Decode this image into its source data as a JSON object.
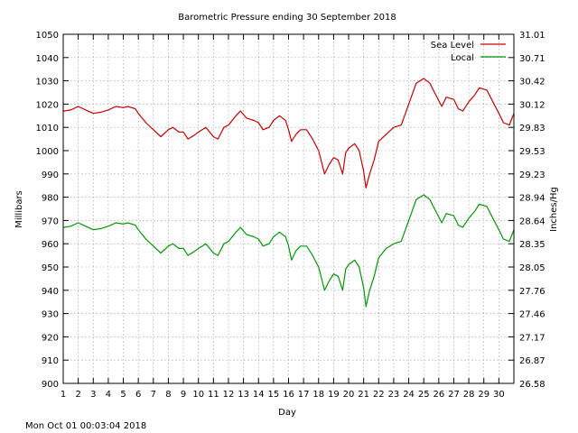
{
  "chart_data": {
    "type": "line",
    "title": "Barometric Pressure ending 30 September 2018",
    "xlabel": "Day",
    "ylabel": "Millibars",
    "y2label": "Inches/Hg",
    "timestamp": "Mon Oct 01 00:03:04 2018",
    "xlim": [
      1,
      31
    ],
    "ylim": [
      900,
      1050
    ],
    "x_ticks": [
      "1",
      "2",
      "3",
      "4",
      "5",
      "6",
      "7",
      "8",
      "9",
      "10",
      "11",
      "12",
      "13",
      "14",
      "15",
      "16",
      "17",
      "18",
      "19",
      "20",
      "21",
      "22",
      "23",
      "24",
      "25",
      "26",
      "27",
      "28",
      "29",
      "30"
    ],
    "y_ticks": [
      "900",
      "910",
      "920",
      "930",
      "940",
      "950",
      "960",
      "970",
      "980",
      "990",
      "1000",
      "1010",
      "1020",
      "1030",
      "1040",
      "1050"
    ],
    "y2_ticks": [
      "26.58",
      "26.87",
      "27.17",
      "27.46",
      "27.76",
      "28.05",
      "28.35",
      "28.64",
      "28.94",
      "29.23",
      "29.53",
      "29.83",
      "30.12",
      "30.42",
      "30.71",
      "31.01"
    ],
    "grid": true,
    "legend_position": "top-right",
    "series": [
      {
        "name": "Sea Level",
        "color": "#cc0000",
        "points": [
          [
            1.0,
            1017
          ],
          [
            1.5,
            1017.5
          ],
          [
            2.0,
            1019
          ],
          [
            2.5,
            1017.5
          ],
          [
            3.0,
            1016
          ],
          [
            3.5,
            1016.5
          ],
          [
            4.0,
            1017.5
          ],
          [
            4.5,
            1019
          ],
          [
            5.0,
            1018.5
          ],
          [
            5.3,
            1019
          ],
          [
            5.8,
            1018
          ],
          [
            6.0,
            1016
          ],
          [
            6.5,
            1012
          ],
          [
            7.0,
            1009
          ],
          [
            7.5,
            1006
          ],
          [
            8.0,
            1009
          ],
          [
            8.3,
            1010
          ],
          [
            8.7,
            1008
          ],
          [
            9.0,
            1008
          ],
          [
            9.3,
            1005
          ],
          [
            9.7,
            1006.5
          ],
          [
            10.0,
            1008
          ],
          [
            10.5,
            1010
          ],
          [
            11.0,
            1006
          ],
          [
            11.3,
            1005
          ],
          [
            11.7,
            1010
          ],
          [
            12.0,
            1011
          ],
          [
            12.5,
            1015
          ],
          [
            12.8,
            1017
          ],
          [
            13.2,
            1014
          ],
          [
            13.7,
            1013
          ],
          [
            14.0,
            1012
          ],
          [
            14.3,
            1009
          ],
          [
            14.7,
            1010
          ],
          [
            15.0,
            1013
          ],
          [
            15.4,
            1015
          ],
          [
            15.8,
            1013
          ],
          [
            16.0,
            1009
          ],
          [
            16.2,
            1004
          ],
          [
            16.5,
            1007
          ],
          [
            16.8,
            1009
          ],
          [
            17.2,
            1009
          ],
          [
            17.6,
            1005
          ],
          [
            18.0,
            1000
          ],
          [
            18.4,
            990
          ],
          [
            18.7,
            994
          ],
          [
            19.0,
            997
          ],
          [
            19.3,
            996
          ],
          [
            19.6,
            990
          ],
          [
            19.8,
            999
          ],
          [
            20.0,
            1001
          ],
          [
            20.4,
            1003
          ],
          [
            20.7,
            1000
          ],
          [
            21.0,
            991
          ],
          [
            21.15,
            984
          ],
          [
            21.4,
            990
          ],
          [
            21.7,
            996
          ],
          [
            22.0,
            1004
          ],
          [
            22.5,
            1007
          ],
          [
            23.0,
            1010
          ],
          [
            23.5,
            1011
          ],
          [
            24.0,
            1020
          ],
          [
            24.5,
            1029
          ],
          [
            25.0,
            1031
          ],
          [
            25.4,
            1029
          ],
          [
            25.8,
            1024
          ],
          [
            26.2,
            1019
          ],
          [
            26.5,
            1023
          ],
          [
            27.0,
            1022
          ],
          [
            27.3,
            1018
          ],
          [
            27.6,
            1017
          ],
          [
            28.0,
            1021
          ],
          [
            28.4,
            1024
          ],
          [
            28.7,
            1027
          ],
          [
            29.2,
            1026
          ],
          [
            29.6,
            1021
          ],
          [
            30.0,
            1016
          ],
          [
            30.3,
            1012
          ],
          [
            30.7,
            1011
          ],
          [
            31.0,
            1016
          ]
        ]
      },
      {
        "name": "Local",
        "color": "#009900",
        "points": [
          [
            1.0,
            967
          ],
          [
            1.5,
            967.5
          ],
          [
            2.0,
            969
          ],
          [
            2.5,
            967.5
          ],
          [
            3.0,
            966
          ],
          [
            3.5,
            966.5
          ],
          [
            4.0,
            967.5
          ],
          [
            4.5,
            969
          ],
          [
            5.0,
            968.5
          ],
          [
            5.3,
            969
          ],
          [
            5.8,
            968
          ],
          [
            6.0,
            966
          ],
          [
            6.5,
            962
          ],
          [
            7.0,
            959
          ],
          [
            7.5,
            956
          ],
          [
            8.0,
            959
          ],
          [
            8.3,
            960
          ],
          [
            8.7,
            958
          ],
          [
            9.0,
            958
          ],
          [
            9.3,
            955
          ],
          [
            9.7,
            956.5
          ],
          [
            10.0,
            958
          ],
          [
            10.5,
            960
          ],
          [
            11.0,
            956
          ],
          [
            11.3,
            955
          ],
          [
            11.7,
            960
          ],
          [
            12.0,
            961
          ],
          [
            12.5,
            965
          ],
          [
            12.8,
            967
          ],
          [
            13.2,
            964
          ],
          [
            13.7,
            963
          ],
          [
            14.0,
            962
          ],
          [
            14.3,
            959
          ],
          [
            14.7,
            960
          ],
          [
            15.0,
            963
          ],
          [
            15.4,
            965
          ],
          [
            15.8,
            963
          ],
          [
            16.0,
            959
          ],
          [
            16.2,
            953
          ],
          [
            16.5,
            957
          ],
          [
            16.8,
            959
          ],
          [
            17.2,
            959
          ],
          [
            17.6,
            955
          ],
          [
            18.0,
            950
          ],
          [
            18.4,
            940
          ],
          [
            18.7,
            944
          ],
          [
            19.0,
            947
          ],
          [
            19.3,
            946
          ],
          [
            19.6,
            940
          ],
          [
            19.8,
            949
          ],
          [
            20.0,
            951
          ],
          [
            20.4,
            953
          ],
          [
            20.7,
            950
          ],
          [
            21.0,
            941
          ],
          [
            21.15,
            933
          ],
          [
            21.4,
            940
          ],
          [
            21.7,
            946
          ],
          [
            22.0,
            954
          ],
          [
            22.5,
            958
          ],
          [
            23.0,
            960
          ],
          [
            23.5,
            961
          ],
          [
            24.0,
            970
          ],
          [
            24.5,
            979
          ],
          [
            25.0,
            981
          ],
          [
            25.4,
            979
          ],
          [
            25.8,
            974
          ],
          [
            26.2,
            969
          ],
          [
            26.5,
            973
          ],
          [
            27.0,
            972
          ],
          [
            27.3,
            968
          ],
          [
            27.6,
            967
          ],
          [
            28.0,
            971
          ],
          [
            28.4,
            974
          ],
          [
            28.7,
            977
          ],
          [
            29.2,
            976
          ],
          [
            29.6,
            971
          ],
          [
            30.0,
            966
          ],
          [
            30.3,
            962
          ],
          [
            30.7,
            961
          ],
          [
            31.0,
            966
          ]
        ]
      }
    ]
  }
}
